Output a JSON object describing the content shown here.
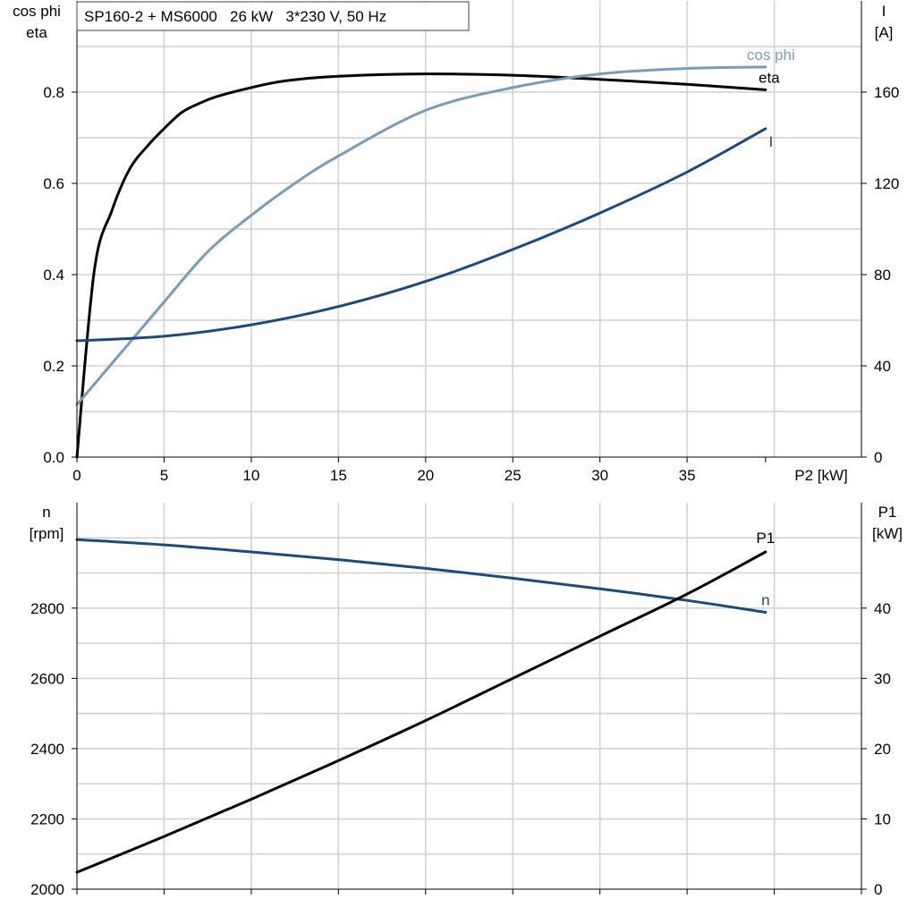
{
  "chart_data": [
    {
      "type": "line",
      "title": "SP160-2 + MS6000   26 kW   3*230 V, 50 Hz",
      "xlabel": "P2 [kW]",
      "ylabel_left_lines": [
        "cos phi",
        "eta"
      ],
      "ylabel_right_lines": [
        "I",
        "[A]"
      ],
      "xlim": [
        0,
        45
      ],
      "x_ticks": [
        0,
        5,
        10,
        15,
        20,
        25,
        30,
        35
      ],
      "ylim_left": [
        0,
        1.0
      ],
      "y_ticks_left": [
        0.0,
        0.2,
        0.4,
        0.6,
        0.8
      ],
      "y_tick_labels_left": [
        "0.0",
        "0.2",
        "0.4",
        "0.6",
        "0.8"
      ],
      "ylim_right": [
        0,
        200
      ],
      "y_ticks_right": [
        0,
        40,
        80,
        120,
        160
      ],
      "grid": true,
      "series": [
        {
          "name": "eta",
          "axis": "left",
          "color": "#000000",
          "x": [
            0,
            1,
            2,
            3,
            4,
            5,
            6,
            7,
            8,
            10,
            12,
            15,
            20,
            25,
            30,
            35,
            39.5
          ],
          "y": [
            0.0,
            0.41,
            0.54,
            0.63,
            0.68,
            0.72,
            0.755,
            0.775,
            0.79,
            0.81,
            0.825,
            0.835,
            0.84,
            0.837,
            0.828,
            0.817,
            0.805
          ]
        },
        {
          "name": "cos phi",
          "axis": "left",
          "color": "#7a9cbb",
          "x": [
            0,
            3,
            5,
            7.5,
            10,
            12.5,
            15,
            20,
            25,
            30,
            35,
            39.5
          ],
          "y": [
            0.115,
            0.25,
            0.34,
            0.45,
            0.53,
            0.6,
            0.66,
            0.76,
            0.81,
            0.84,
            0.852,
            0.855
          ]
        },
        {
          "name": "I",
          "axis": "right",
          "color": "#1c4a7a",
          "x": [
            0,
            5,
            10,
            15,
            20,
            25,
            30,
            35,
            39.5
          ],
          "y": [
            51,
            53,
            58,
            66,
            77,
            91,
            107,
            125,
            144
          ]
        }
      ]
    },
    {
      "type": "line",
      "title": "",
      "xlabel": "",
      "ylabel_left_lines": [
        "n",
        "[rpm]"
      ],
      "ylabel_right_lines": [
        "P1",
        "[kW]"
      ],
      "xlim": [
        0,
        45
      ],
      "ylim_left": [
        2000,
        3100
      ],
      "y_ticks_left": [
        2000,
        2200,
        2400,
        2600,
        2800
      ],
      "ylim_right": [
        0,
        55
      ],
      "y_ticks_right": [
        0,
        10,
        20,
        30,
        40
      ],
      "grid": true,
      "series": [
        {
          "name": "n",
          "axis": "left",
          "color": "#1c4a7a",
          "x": [
            0,
            5,
            10,
            15,
            20,
            25,
            30,
            35,
            39.5
          ],
          "y": [
            2995,
            2980,
            2960,
            2938,
            2913,
            2885,
            2855,
            2822,
            2788
          ]
        },
        {
          "name": "P1",
          "axis": "right",
          "color": "#000000",
          "x": [
            0,
            5,
            10,
            15,
            20,
            25,
            30,
            35,
            39.5
          ],
          "y": [
            2.4,
            7.5,
            12.8,
            18.3,
            24.0,
            30.0,
            36.0,
            42.0,
            48.0
          ]
        }
      ]
    }
  ]
}
